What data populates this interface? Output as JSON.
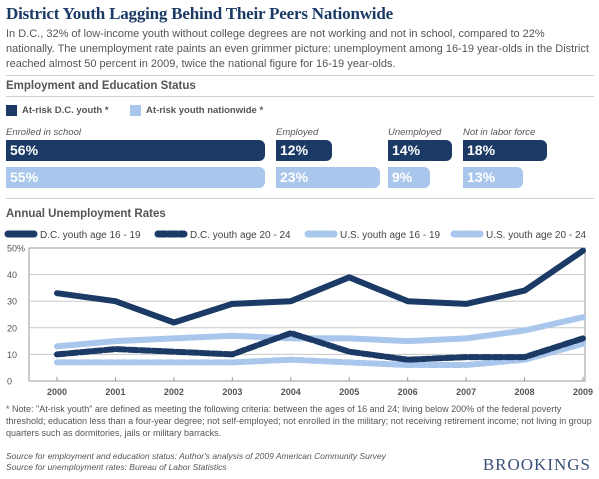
{
  "title": "District Youth Lagging Behind Their Peers Nationwide",
  "intro": "In D.C., 32% of low-income youth without college degrees are not working and not in school, compared to 22% nationally. The unemployment rate paints an even grimmer picture: unemployment among 16-19 year-olds in the District reached almost 50 percent in 2009, twice the national figure for 16-19 year-olds.",
  "employment": {
    "heading": "Employment and Education Status",
    "legend": {
      "dc": "At-risk D.C. youth *",
      "national": "At-risk youth nationwide *"
    },
    "colors": {
      "dc": "#1b3a66",
      "national": "#a9c6ec"
    },
    "groups": [
      {
        "label": "Enrolled in school",
        "dc": "56%",
        "national": "55%",
        "dc_value": 56,
        "national_value": 55
      },
      {
        "label": "Employed",
        "dc": "12%",
        "national": "23%",
        "dc_value": 12,
        "national_value": 23
      },
      {
        "label": "Unemployed",
        "dc": "14%",
        "national": "9%",
        "dc_value": 14,
        "national_value": 9
      },
      {
        "label": "Not in labor force",
        "dc": "18%",
        "national": "13%",
        "dc_value": 18,
        "national_value": 13
      }
    ]
  },
  "unemployment_heading": "Annual Unemployment Rates",
  "chart_data": {
    "type": "line",
    "title": "Annual Unemployment Rates",
    "x": [
      "2000",
      "2001",
      "2002",
      "2003",
      "2004",
      "2005",
      "2006",
      "2007",
      "2008",
      "2009"
    ],
    "ylim": [
      0,
      50
    ],
    "yticks": [
      "0",
      "10",
      "20",
      "30",
      "40",
      "50%"
    ],
    "grid": true,
    "legend_position": "top",
    "series": [
      {
        "name": "D.C. youth age 16 - 19",
        "color": "#1b3a66",
        "style": "solid",
        "values": [
          33,
          30,
          22,
          29,
          30,
          39,
          30,
          29,
          34,
          49
        ]
      },
      {
        "name": "D.C. youth age 20 - 24",
        "color": "#1b3a66",
        "style": "dashed",
        "values": [
          10,
          12,
          11,
          10,
          18,
          11,
          8,
          9,
          9,
          16
        ]
      },
      {
        "name": "U.S. youth age 16 - 19",
        "color": "#a9c6ec",
        "style": "solid",
        "values": [
          13,
          15,
          16,
          17,
          16,
          16,
          15,
          16,
          19,
          24
        ]
      },
      {
        "name": "U.S. youth age 20 - 24",
        "color": "#a9c6ec",
        "style": "dashed",
        "values": [
          7,
          7,
          7,
          7,
          8,
          7,
          6,
          6,
          8,
          14
        ]
      }
    ]
  },
  "note": "* Note: \"At-risk youth\" are defined as meeting the following criteria: between the ages of 16 and 24; living below 200% of the federal poverty threshold; education less than a four-year degree; not self-employed; not enrolled in the military; not receiving retirement income; not living in group quarters such as dormitories, jails or military barracks.",
  "sources": [
    "Source for employment and education status: Author's analysis of 2009 American Community Survey",
    "Source for unemployment rates: Bureau of Labor Statistics"
  ],
  "brand": "BROOKINGS"
}
